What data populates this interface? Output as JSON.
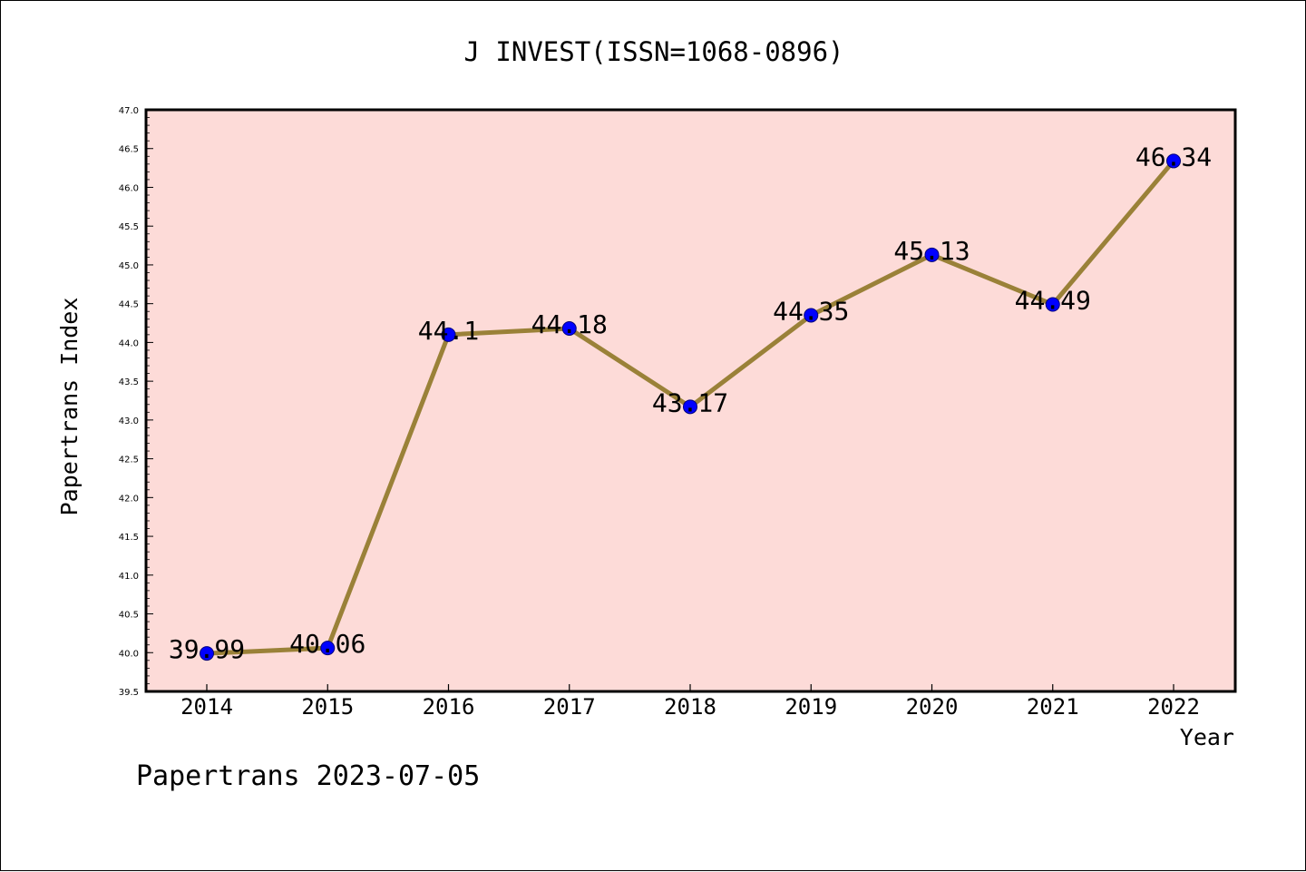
{
  "chart_data": {
    "type": "line",
    "title": "J INVEST(ISSN=1068-0896)",
    "xlabel": "Year",
    "ylabel": "Papertrans Index",
    "footer": "Papertrans 2023-07-05",
    "categories": [
      "2014",
      "2015",
      "2016",
      "2017",
      "2018",
      "2019",
      "2020",
      "2021",
      "2022"
    ],
    "series": [
      {
        "values": [
          39.99,
          40.06,
          44.1,
          44.18,
          43.17,
          44.35,
          45.13,
          44.49,
          46.34
        ],
        "labels": [
          "39.99",
          "40.06",
          "44.1",
          "44.18",
          "43.17",
          "44.35",
          "45.13",
          "44.49",
          "46.34"
        ]
      }
    ],
    "ylim": [
      39.5,
      47.0
    ],
    "yticks": [
      "39.5",
      "40.0",
      "40.5",
      "41.0",
      "41.5",
      "42.0",
      "42.5",
      "43.0",
      "43.5",
      "44.0",
      "44.5",
      "45.0",
      "45.5",
      "46.0",
      "46.5",
      "47.0"
    ],
    "grid": false,
    "colors": {
      "plot_background": "#fddbd8",
      "line": "#9a8138",
      "marker": "#0000ff",
      "marker_edge": "#00007a"
    }
  }
}
